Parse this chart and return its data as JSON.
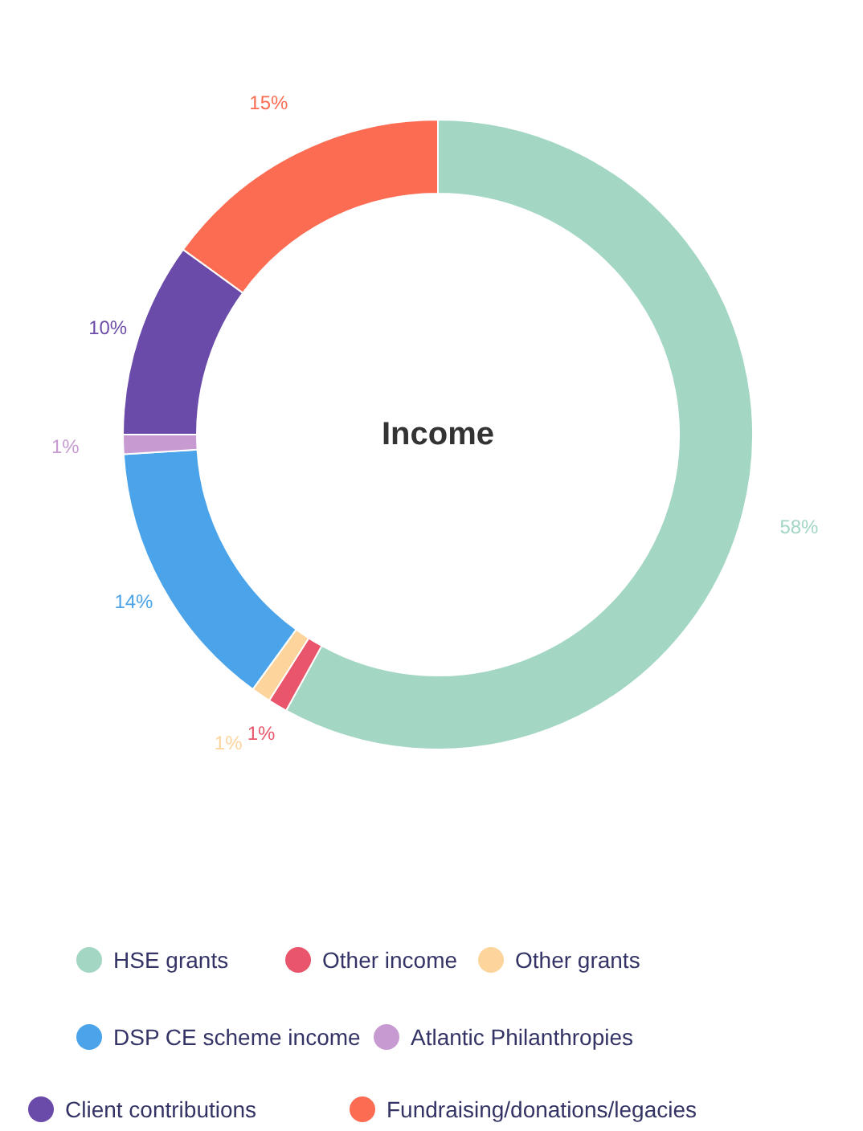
{
  "chart_data": {
    "type": "donut",
    "title": "Income",
    "categories": [
      "HSE grants",
      "Other income",
      "Other grants",
      "DSP CE scheme income",
      "Atlantic Philanthropies",
      "Client contributions",
      "Fundraising/donations/legacies"
    ],
    "values": [
      58,
      1,
      1,
      14,
      1,
      10,
      15
    ],
    "value_labels": [
      "58%",
      "1%",
      "1%",
      "14%",
      "1%",
      "10%",
      "15%"
    ],
    "colors": [
      "#a3d6c3",
      "#e9566b",
      "#fcd49c",
      "#4ba4e9",
      "#c79bd2",
      "#6b4ba9",
      "#fb6c52"
    ],
    "legend": "bottom"
  }
}
